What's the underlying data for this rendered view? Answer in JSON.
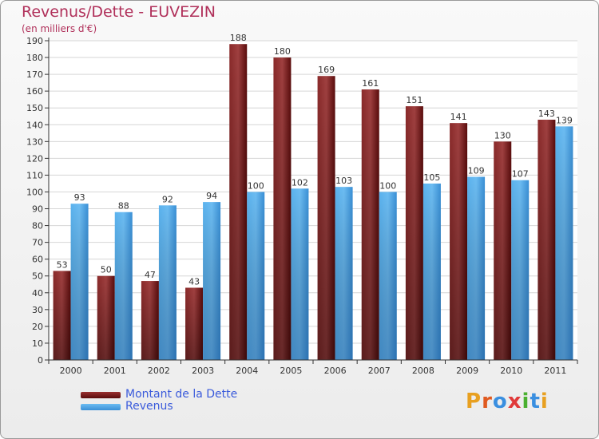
{
  "header": {
    "title": "Revenus/Dette - EUVEZIN",
    "subtitle": "(en milliers d'€)"
  },
  "legend": {
    "items": [
      {
        "label": "Montant de la Dette",
        "color": "#7a1a1a"
      },
      {
        "label": "Revenus",
        "color": "#4aa3e6"
      }
    ]
  },
  "logo": {
    "text": "Proxiti",
    "letter_colors": [
      "#e8a020",
      "#e05a20",
      "#3a8fe0",
      "#e03a3a",
      "#4ab030",
      "#3a8fe0",
      "#e8a020"
    ]
  },
  "chart_data": {
    "type": "bar",
    "title": "Revenus/Dette - EUVEZIN",
    "subtitle": "(en milliers d'€)",
    "categories": [
      "2000",
      "2001",
      "2002",
      "2003",
      "2004",
      "2005",
      "2006",
      "2007",
      "2008",
      "2009",
      "2010",
      "2011"
    ],
    "series": [
      {
        "name": "Montant de la Dette",
        "color": "#7a1a1a",
        "values": [
          53,
          50,
          47,
          43,
          188,
          180,
          169,
          161,
          151,
          141,
          130,
          143
        ]
      },
      {
        "name": "Revenus",
        "color": "#4aa3e6",
        "values": [
          93,
          88,
          92,
          94,
          100,
          102,
          103,
          100,
          105,
          109,
          107,
          139
        ]
      }
    ],
    "ylim": [
      0,
      190
    ],
    "yticks": [
      0,
      10,
      20,
      30,
      40,
      50,
      60,
      70,
      80,
      90,
      100,
      110,
      120,
      130,
      140,
      150,
      160,
      170,
      180,
      190
    ],
    "grid": true,
    "legend_position": "bottom-left"
  }
}
